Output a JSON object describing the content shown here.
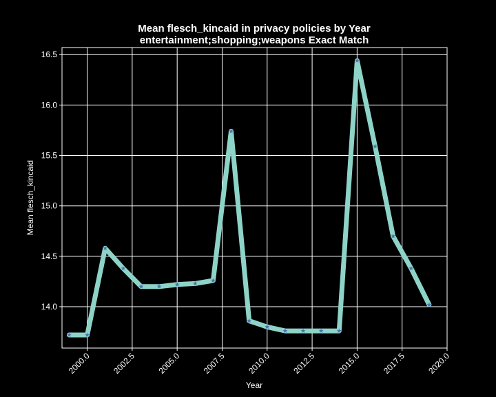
{
  "chart_data": {
    "type": "line",
    "title": "Mean flesch_kincaid in privacy policies by Year",
    "subtitle": "entertainment;shopping;weapons Exact Match",
    "xlabel": "Year",
    "ylabel": "Mean flesch_kincaid",
    "xlim": [
      1998.6,
      2020.0
    ],
    "ylim": [
      13.59,
      16.57
    ],
    "xticks": [
      "2000.0",
      "2002.5",
      "2005.0",
      "2007.5",
      "2010.0",
      "2012.5",
      "2015.0",
      "2017.5",
      "2020.0"
    ],
    "yticks": [
      "14.0",
      "14.5",
      "15.0",
      "15.5",
      "16.0",
      "16.5"
    ],
    "grid": true,
    "legend": "none",
    "series": [
      {
        "x": [
          1999,
          2000,
          2001,
          2002,
          2003,
          2004,
          2005,
          2006,
          2007,
          2008,
          2009,
          2010,
          2011,
          2012,
          2013,
          2014,
          2015,
          2016,
          2017,
          2018,
          2019
        ],
        "y": [
          13.72,
          13.72,
          14.58,
          14.38,
          14.2,
          14.2,
          14.22,
          14.23,
          14.26,
          15.74,
          13.86,
          13.8,
          13.76,
          13.76,
          13.76,
          13.76,
          16.44,
          15.59,
          14.7,
          14.38,
          14.02
        ]
      }
    ],
    "colors": {
      "line": "#8dd3c7",
      "marker": "#4c72b0",
      "background": "#000000",
      "grid": "#ffffff",
      "text": "#ffffff"
    }
  }
}
